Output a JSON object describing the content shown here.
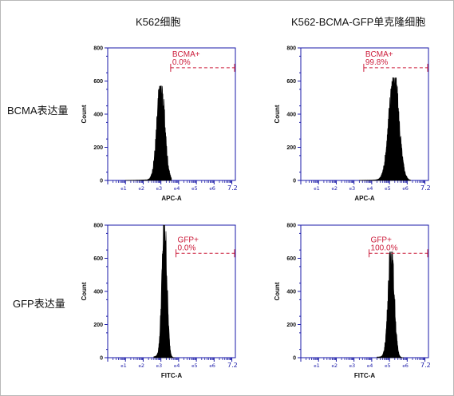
{
  "columns": [
    "K562细胞",
    "K562-BCMA-GFP单克隆细胞"
  ],
  "rows": [
    "BCMA表达量",
    "GFP表达量"
  ],
  "colors": {
    "axis": "#1a1aa8",
    "gate": "#cc1e3c",
    "histogram": "#000000"
  },
  "chart_data": [
    {
      "type": "area",
      "title": "K562细胞",
      "xlabel": "APC-A",
      "ylabel": "Count",
      "xscale": "log",
      "xlim": [
        0,
        7.2
      ],
      "ylim": [
        0,
        800
      ],
      "x_tick_labels": [
        "10^1",
        "10^2",
        "10^3",
        "10^4",
        "10^5",
        "10^6",
        "10^7.2"
      ],
      "y_ticks": [
        0,
        200,
        400,
        600,
        800
      ],
      "y_tick_labels": [
        "0",
        "200",
        "400",
        "600",
        "800"
      ],
      "histogram": {
        "peak_log10": 3.0,
        "width_log10": 0.22,
        "peak_count": 570,
        "min_log10": 1.0,
        "max_log10": 3.6
      },
      "gate": {
        "name": "BCMA+",
        "value": "0.0%",
        "x_start_log10": 3.55,
        "x_end_log10": 7.2,
        "level_count": 680
      }
    },
    {
      "type": "area",
      "title": "K562-BCMA-GFP单克隆细胞",
      "xlabel": "APC-A",
      "ylabel": "Count",
      "xscale": "log",
      "xlim": [
        0,
        7.2
      ],
      "ylim": [
        0,
        800
      ],
      "x_tick_labels": [
        "10^1",
        "10^2",
        "10^3",
        "10^4",
        "10^5",
        "10^6",
        "10^7.2"
      ],
      "y_ticks": [
        0,
        200,
        400,
        600,
        800
      ],
      "y_tick_labels": [
        "0",
        "200",
        "400",
        "600",
        "800"
      ],
      "histogram": {
        "peak_log10": 5.25,
        "width_log10": 0.28,
        "peak_count": 620,
        "min_log10": 3.3,
        "max_log10": 6.2
      },
      "gate": {
        "name": "BCMA+",
        "value": "99.8%",
        "x_start_log10": 3.55,
        "x_end_log10": 7.2,
        "level_count": 680
      }
    },
    {
      "type": "area",
      "title": "K562细胞",
      "xlabel": "FITC-A",
      "ylabel": "Count",
      "xscale": "log",
      "xlim": [
        0,
        7.2
      ],
      "ylim": [
        0,
        800
      ],
      "x_tick_labels": [
        "10^1",
        "10^2",
        "10^3",
        "10^4",
        "10^5",
        "10^6",
        "10^7.2"
      ],
      "y_ticks": [
        0,
        200,
        400,
        600,
        800
      ],
      "y_tick_labels": [
        "0",
        "200",
        "400",
        "600",
        "800"
      ],
      "histogram": {
        "peak_log10": 3.2,
        "width_log10": 0.14,
        "peak_count": 800,
        "min_log10": 2.6,
        "max_log10": 3.8
      },
      "gate": {
        "name": "GFP+",
        "value": "0.0%",
        "x_start_log10": 3.85,
        "x_end_log10": 7.2,
        "level_count": 630
      }
    },
    {
      "type": "area",
      "title": "K562-BCMA-GFP单克隆细胞",
      "xlabel": "FITC-A",
      "ylabel": "Count",
      "xscale": "log",
      "xlim": [
        0,
        7.2
      ],
      "ylim": [
        0,
        800
      ],
      "x_tick_labels": [
        "10^1",
        "10^2",
        "10^3",
        "10^4",
        "10^5",
        "10^6",
        "10^7.2"
      ],
      "y_ticks": [
        0,
        200,
        400,
        600,
        800
      ],
      "y_tick_labels": [
        "0",
        "200",
        "400",
        "600",
        "800"
      ],
      "histogram": {
        "peak_log10": 5.1,
        "width_log10": 0.17,
        "peak_count": 640,
        "min_log10": 4.3,
        "max_log10": 5.8
      },
      "gate": {
        "name": "GFP+",
        "value": "100.0%",
        "x_start_log10": 3.85,
        "x_end_log10": 7.2,
        "level_count": 630
      }
    }
  ]
}
